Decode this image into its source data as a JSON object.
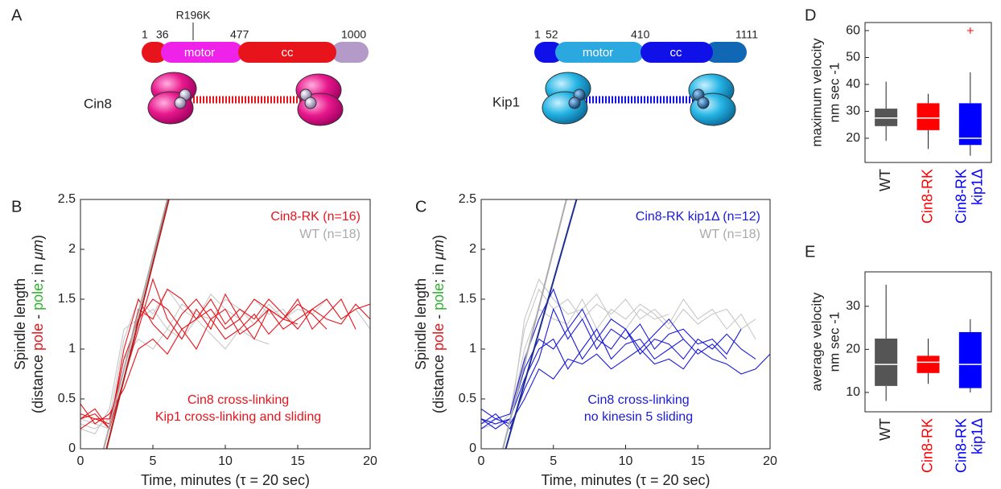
{
  "panel_labels": [
    "A",
    "B",
    "C",
    "D",
    "E"
  ],
  "diagram": {
    "cin8": {
      "name": "Cin8",
      "mutation": "R196K",
      "positions": [
        "1",
        "36",
        "477",
        "1000"
      ],
      "domains": [
        "motor",
        "cc"
      ]
    },
    "kip1": {
      "name": "Kip1",
      "positions": [
        "1",
        "52",
        "410",
        "1111"
      ],
      "domains": [
        "motor",
        "cc"
      ]
    }
  },
  "chart_data": [
    {
      "type": "line",
      "xlabel": "Time, minutes (τ = 20 sec)",
      "ylabel": {
        "line1": "Spindle length",
        "line2": [
          {
            "text": "(distance "
          },
          {
            "text": "pole",
            "color": "#e8141c"
          },
          {
            "text": " - "
          },
          {
            "text": "pole",
            "color": "#2bb52b"
          },
          {
            "text": "; in "
          },
          {
            "text": "μm",
            "style": "italic"
          },
          {
            "text": ")"
          }
        ]
      },
      "xlim": [
        0,
        20
      ],
      "ylim": [
        0,
        2.5
      ],
      "xticks": [
        0,
        5,
        10,
        15,
        20
      ],
      "yticks": [
        0,
        0.5,
        1,
        1.5,
        2,
        2.5
      ],
      "x": [
        0,
        1,
        2,
        3,
        4,
        5,
        6,
        7,
        8,
        9,
        10,
        11,
        12,
        13,
        14,
        15,
        16,
        17,
        18,
        19,
        20
      ],
      "series": [
        {
          "color": "#c8c8c8",
          "values": [
            0.25,
            0.2,
            0.3,
            1.1,
            1.5,
            1.35,
            1.6,
            1.4,
            1.3,
            1.55,
            1.4,
            1.3,
            1.5,
            1.35,
            1.4,
            1.2,
            null,
            null,
            null,
            null,
            null
          ]
        },
        {
          "color": "#c8c8c8",
          "values": [
            0.2,
            0.15,
            0.4,
            1.2,
            1.3,
            1.4,
            1.2,
            1.45,
            1.35,
            1.3,
            1.5,
            1.4,
            1.25,
            1.45,
            1.3,
            1.4,
            1.35,
            1.5,
            1.3,
            1.4,
            1.2
          ]
        },
        {
          "color": "#c8c8c8",
          "values": [
            0.3,
            0.25,
            0.2,
            0.9,
            1.1,
            1.0,
            1.2,
            1.1,
            1.3,
            1.15,
            1.0,
            1.2,
            1.1,
            1.05,
            null,
            null,
            null,
            null,
            null,
            null,
            null
          ]
        },
        {
          "color": "#e8141c",
          "values": [
            0.35,
            0.3,
            0.25,
            0.9,
            1.3,
            1.5,
            1.4,
            1.2,
            1.3,
            1.5,
            1.25,
            1.4,
            1.3,
            1.5,
            1.35,
            1.2,
            1.4,
            1.3,
            1.25,
            1.45,
            1.3
          ]
        },
        {
          "color": "#e8141c",
          "values": [
            0.3,
            0.4,
            0.2,
            0.7,
            1.2,
            1.7,
            1.3,
            1.1,
            1.4,
            1.2,
            1.55,
            1.3,
            1.1,
            1.4,
            1.3,
            1.5,
            1.2,
            1.35,
            1.5,
            1.2,
            null
          ]
        },
        {
          "color": "#e8141c",
          "values": [
            0.45,
            0.25,
            0.35,
            0.6,
            1.0,
            1.1,
            0.95,
            1.2,
            1.0,
            1.3,
            1.1,
            1.2,
            1.35,
            1.15,
            1.3,
            1.25,
            null,
            null,
            null,
            null,
            null
          ]
        },
        {
          "color": "#e8141c",
          "values": [
            0.2,
            0.3,
            0.3,
            0.8,
            1.4,
            1.3,
            1.6,
            1.5,
            1.3,
            1.4,
            1.2,
            1.3,
            1.5,
            1.4,
            1.2,
            1.3,
            1.4,
            1.5,
            1.3,
            1.4,
            1.45
          ]
        },
        {
          "color": "#e8141c",
          "values": [
            0.3,
            0.35,
            0.2,
            1.0,
            1.5,
            1.25,
            1.1,
            1.35,
            1.5,
            1.3,
            1.4,
            1.15,
            1.25,
            1.4,
            1.3,
            1.45,
            1.35,
            1.2,
            null,
            null,
            null
          ]
        }
      ],
      "fits": [
        {
          "color": "#aaaaaa",
          "x": [
            1.6,
            6.0
          ],
          "y": [
            0,
            2.5
          ]
        },
        {
          "color": "#b22222",
          "x": [
            1.8,
            6.1
          ],
          "y": [
            0,
            2.5
          ]
        }
      ],
      "legend": [
        {
          "text": "Cin8-RK (n=16)",
          "color": "#e8141c"
        },
        {
          "text": "WT (n=18)",
          "color": "#aaaaaa"
        }
      ],
      "annotations": [
        {
          "text": "Cin8 cross-linking",
          "color": "#e8141c"
        },
        {
          "text": "Kip1 cross-linking and sliding",
          "color": "#e8141c"
        }
      ]
    },
    {
      "type": "line",
      "xlabel": "Time, minutes (τ = 20 sec)",
      "ylabel": {
        "line1": "Spindle length",
        "line2": [
          {
            "text": "(distance "
          },
          {
            "text": "pole",
            "color": "#e8141c"
          },
          {
            "text": " - "
          },
          {
            "text": "pole",
            "color": "#2bb52b"
          },
          {
            "text": "; in "
          },
          {
            "text": "μm",
            "style": "italic"
          },
          {
            "text": ")"
          }
        ]
      },
      "xlim": [
        0,
        20
      ],
      "ylim": [
        0,
        2.5
      ],
      "xticks": [
        0,
        5,
        10,
        15,
        20
      ],
      "yticks": [
        0,
        0.5,
        1,
        1.5,
        2,
        2.5
      ],
      "x": [
        0,
        1,
        2,
        3,
        4,
        5,
        6,
        7,
        8,
        9,
        10,
        11,
        12,
        13,
        14,
        15,
        16,
        17,
        18,
        19,
        20
      ],
      "series": [
        {
          "color": "#c8c8c8",
          "values": [
            0.3,
            0.2,
            0.35,
            1.2,
            1.6,
            1.4,
            1.5,
            1.3,
            1.45,
            1.35,
            1.5,
            1.3,
            1.4,
            1.25,
            1.5,
            1.3,
            1.4,
            1.2,
            1.35,
            1.1,
            null
          ]
        },
        {
          "color": "#c8c8c8",
          "values": [
            0.2,
            0.25,
            0.3,
            1.0,
            1.4,
            1.3,
            1.25,
            1.5,
            1.2,
            1.4,
            1.3,
            1.45,
            1.35,
            1.2,
            1.4,
            1.25,
            1.35,
            1.4,
            1.2,
            1.3,
            null
          ]
        },
        {
          "color": "#c8c8c8",
          "values": [
            0.25,
            0.3,
            0.25,
            1.3,
            1.7,
            1.5,
            1.35,
            1.4,
            1.55,
            1.3,
            1.2,
            1.4,
            1.3,
            1.35,
            null,
            null,
            null,
            null,
            null,
            null,
            null
          ]
        },
        {
          "color": "#1a1adc",
          "values": [
            0.3,
            0.25,
            0.3,
            0.8,
            1.1,
            1.0,
            1.2,
            0.9,
            1.1,
            1.0,
            1.2,
            0.95,
            1.1,
            1.05,
            0.9,
            1.1,
            1.0,
            1.15,
            1.0,
            0.9,
            null
          ]
        },
        {
          "color": "#1a1adc",
          "values": [
            0.25,
            0.35,
            0.2,
            0.6,
            0.9,
            1.4,
            1.1,
            1.3,
            1.0,
            1.2,
            1.1,
            1.25,
            1.0,
            1.15,
            1.2,
            1.05,
            1.1,
            0.95,
            1.2,
            null,
            null
          ]
        },
        {
          "color": "#1a1adc",
          "values": [
            0.2,
            0.3,
            0.25,
            0.5,
            0.8,
            0.7,
            0.9,
            0.85,
            0.95,
            0.8,
            0.9,
            1.0,
            0.85,
            0.9,
            0.8,
            1.0,
            0.9,
            0.85,
            0.75,
            0.8,
            0.95
          ]
        },
        {
          "color": "#1a1adc",
          "values": [
            0.4,
            0.3,
            0.35,
            0.9,
            1.3,
            1.6,
            1.2,
            1.4,
            1.1,
            1.3,
            1.2,
            1.0,
            1.15,
            1.3,
            1.1,
            null,
            null,
            null,
            null,
            null,
            null
          ]
        },
        {
          "color": "#1a1adc",
          "values": [
            0.3,
            0.2,
            0.3,
            0.7,
            1.0,
            1.1,
            0.8,
            1.0,
            1.2,
            0.9,
            1.05,
            1.1,
            0.9,
            1.0,
            1.1,
            0.95,
            1.05,
            0.9,
            null,
            null,
            null
          ]
        }
      ],
      "fits": [
        {
          "color": "#aaaaaa",
          "x": [
            1.5,
            5.9
          ],
          "y": [
            0,
            2.5
          ]
        },
        {
          "color": "#1e2f8f",
          "x": [
            1.7,
            6.6
          ],
          "y": [
            0,
            2.5
          ]
        }
      ],
      "legend": [
        {
          "text": "Cin8-RK kip1Δ (n=12)",
          "color": "#1a1adc"
        },
        {
          "text": "WT (n=18)",
          "color": "#aaaaaa"
        }
      ],
      "annotations": [
        {
          "text": "Cin8 cross-linking",
          "color": "#1a1adc"
        },
        {
          "text": "no kinesin 5 sliding",
          "color": "#1a1adc"
        }
      ]
    },
    {
      "type": "box",
      "ylabel": [
        "maximum velocity",
        "nm sec -1"
      ],
      "ylim": [
        11,
        63
      ],
      "yticks": [
        20,
        30,
        40,
        50,
        60
      ],
      "categories": [
        [
          "WT"
        ],
        [
          "Cin8-RK"
        ],
        [
          "Cin8-RK",
          "kip1Δ"
        ]
      ],
      "colors": [
        "#555555",
        "#ff0000",
        "#0000ff"
      ],
      "boxes": [
        {
          "min": 19,
          "q1": 24.5,
          "median": 27.5,
          "q3": 31,
          "max": 41,
          "outliers": []
        },
        {
          "min": 16,
          "q1": 23,
          "median": 27.5,
          "q3": 33,
          "max": 36.5,
          "outliers": []
        },
        {
          "min": 13.5,
          "q1": 17.5,
          "median": 20,
          "q3": 33,
          "max": 44.5,
          "outliers": [
            60
          ]
        }
      ]
    },
    {
      "type": "box",
      "ylabel": [
        "average velocity",
        "nm sec -1"
      ],
      "ylim": [
        5.5,
        38
      ],
      "yticks": [
        10,
        20,
        30
      ],
      "categories": [
        [
          "WT"
        ],
        [
          "Cin8-RK"
        ],
        [
          "Cin8-RK",
          "kip1Δ"
        ]
      ],
      "colors": [
        "#555555",
        "#ff0000",
        "#0000ff"
      ],
      "boxes": [
        {
          "min": 8,
          "q1": 11.5,
          "median": 16.5,
          "q3": 22.5,
          "max": 35,
          "outliers": []
        },
        {
          "min": 12,
          "q1": 14.5,
          "median": 17,
          "q3": 18.5,
          "max": 22.5,
          "outliers": []
        },
        {
          "min": 10,
          "q1": 11,
          "median": 16.5,
          "q3": 24,
          "max": 27,
          "outliers": []
        }
      ]
    }
  ]
}
